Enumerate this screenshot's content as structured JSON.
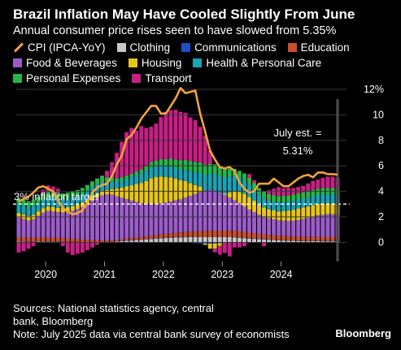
{
  "title": "Brazil Inflation May Have Cooled Slightly From June",
  "subtitle": "Annual consumer price rises seen to have slowed from 5.35%",
  "legend": [
    {
      "label": "CPI (IPCA-YoY)",
      "color": "#f2a33a",
      "kind": "line"
    },
    {
      "label": "Clothing",
      "color": "#c8c8c8",
      "kind": "box"
    },
    {
      "label": "Communications",
      "color": "#1f4fc4",
      "kind": "box"
    },
    {
      "label": "Education",
      "color": "#c8502b",
      "kind": "box"
    },
    {
      "label": "Food & Beverages",
      "color": "#9b5cc9",
      "kind": "box"
    },
    {
      "label": "Housing",
      "color": "#e6c619",
      "kind": "box"
    },
    {
      "label": "Health & Personal Care",
      "color": "#1aa2b5",
      "kind": "box"
    },
    {
      "label": "Personal Expenses",
      "color": "#27b54a",
      "kind": "box"
    },
    {
      "label": "Transport",
      "color": "#c81f86",
      "kind": "box"
    }
  ],
  "annotations": {
    "target_label": "3% inflation target",
    "july_line1": "July est. =",
    "july_line2": "5.31%"
  },
  "footer": {
    "sources_line1": "Sources: National statistics agency, central",
    "sources_line2": "bank, Bloomberg",
    "note": "Note: July 2025 data via central bank survey of economists"
  },
  "brand": "Bloomberg",
  "chart_data": {
    "type": "bar",
    "stacked": true,
    "x_axis": {
      "tick_labels": [
        "2020",
        "2021",
        "2022",
        "2023",
        "2024"
      ]
    },
    "y_axis": {
      "min": -1.5,
      "max": 12,
      "ticks": [
        0,
        2,
        4,
        6,
        8,
        10,
        12
      ],
      "tick_labels": [
        "0",
        "2",
        "4",
        "6",
        "8",
        "10",
        "12%"
      ],
      "position": "right"
    },
    "target_line": 3.0,
    "months": 66,
    "start_month": "2019-07",
    "series": [
      {
        "name": "Clothing",
        "color": "#c8c8c8",
        "values": [
          0.07,
          0.06,
          0.05,
          0.05,
          0.06,
          0.06,
          0.05,
          0.05,
          0.05,
          0.04,
          0.03,
          0.02,
          0.02,
          0.0,
          -0.01,
          -0.01,
          0.0,
          0.0,
          0.02,
          0.05,
          0.08,
          0.1,
          0.13,
          0.15,
          0.18,
          0.2,
          0.23,
          0.26,
          0.29,
          0.32,
          0.35,
          0.37,
          0.39,
          0.4,
          0.41,
          0.42,
          0.42,
          0.42,
          0.42,
          0.42,
          0.42,
          0.42,
          0.42,
          0.41,
          0.39,
          0.36,
          0.33,
          0.3,
          0.28,
          0.25,
          0.23,
          0.21,
          0.19,
          0.17,
          0.15,
          0.14,
          0.13,
          0.12,
          0.11,
          0.1,
          0.1,
          0.1,
          0.09,
          0.09,
          0.09,
          0.09
        ]
      },
      {
        "name": "Communications",
        "color": "#1f4fc4",
        "values": [
          0.02,
          0.02,
          0.02,
          0.02,
          0.02,
          0.02,
          0.02,
          0.02,
          0.02,
          0.02,
          0.02,
          0.02,
          0.02,
          0.02,
          0.02,
          0.02,
          0.02,
          0.02,
          0.02,
          0.02,
          0.02,
          0.02,
          0.02,
          0.02,
          0.02,
          0.02,
          0.02,
          0.02,
          0.02,
          0.02,
          0.02,
          0.02,
          0.02,
          0.02,
          0.02,
          0.02,
          -0.08,
          -0.1,
          -0.1,
          -0.1,
          -0.08,
          -0.06,
          -0.03,
          0.0,
          0.02,
          0.02,
          0.02,
          0.02,
          0.02,
          0.02,
          0.02,
          0.02,
          0.02,
          0.02,
          0.02,
          0.02,
          0.02,
          0.02,
          0.02,
          0.02,
          0.02,
          0.02,
          0.02,
          0.02,
          0.02,
          0.02
        ]
      },
      {
        "name": "Education",
        "color": "#c8502b",
        "values": [
          0.3,
          0.3,
          0.3,
          0.3,
          0.3,
          0.3,
          0.3,
          0.3,
          0.3,
          0.28,
          0.26,
          0.24,
          0.22,
          0.2,
          0.18,
          0.16,
          0.14,
          0.12,
          0.12,
          0.12,
          0.12,
          0.12,
          0.14,
          0.16,
          0.18,
          0.2,
          0.22,
          0.24,
          0.26,
          0.28,
          0.3,
          0.32,
          0.34,
          0.36,
          0.38,
          0.4,
          0.42,
          0.44,
          0.46,
          0.48,
          0.5,
          0.5,
          0.5,
          0.5,
          0.5,
          0.48,
          0.46,
          0.44,
          0.42,
          0.4,
          0.38,
          0.36,
          0.35,
          0.34,
          0.33,
          0.32,
          0.31,
          0.3,
          0.3,
          0.3,
          0.3,
          0.3,
          0.3,
          0.3,
          0.3,
          0.3
        ]
      },
      {
        "name": "Food & Beverages",
        "color": "#9b5cc9",
        "values": [
          1.55,
          1.45,
          1.35,
          1.45,
          1.7,
          1.95,
          2.1,
          2.05,
          2.0,
          2.0,
          2.1,
          2.2,
          2.35,
          2.55,
          2.8,
          3.1,
          3.35,
          3.55,
          3.6,
          3.55,
          3.4,
          3.25,
          3.1,
          2.95,
          2.8,
          2.65,
          2.55,
          2.5,
          2.45,
          2.45,
          2.45,
          2.5,
          2.55,
          2.6,
          2.7,
          2.8,
          2.95,
          3.1,
          3.2,
          3.25,
          3.15,
          3.0,
          2.8,
          2.6,
          2.4,
          2.2,
          2.0,
          1.8,
          1.65,
          1.5,
          1.4,
          1.3,
          1.25,
          1.2,
          1.2,
          1.2,
          1.25,
          1.3,
          1.4,
          1.5,
          1.6,
          1.7,
          1.75,
          1.8,
          1.8,
          1.75
        ]
      },
      {
        "name": "Housing",
        "color": "#e6c619",
        "values": [
          0.35,
          0.35,
          0.35,
          0.35,
          0.35,
          0.35,
          0.35,
          0.35,
          0.35,
          0.35,
          0.35,
          0.35,
          0.35,
          0.35,
          0.35,
          0.35,
          0.35,
          0.35,
          0.35,
          0.45,
          0.6,
          0.8,
          1.0,
          1.2,
          1.4,
          1.6,
          1.8,
          2.0,
          2.1,
          2.1,
          2.0,
          1.9,
          1.7,
          1.5,
          1.3,
          1.0,
          0.7,
          0.4,
          -0.1,
          -0.4,
          -0.4,
          -0.2,
          0.1,
          0.4,
          0.7,
          0.9,
          1.0,
          1.0,
          0.9,
          0.8,
          0.7,
          0.7,
          0.7,
          0.7,
          0.75,
          0.8,
          0.85,
          0.9,
          0.9,
          0.9,
          0.9,
          0.9,
          0.9,
          0.85,
          0.85,
          0.85
        ]
      },
      {
        "name": "Health & Personal Care",
        "color": "#1aa2b5",
        "values": [
          0.7,
          0.7,
          0.7,
          0.7,
          0.7,
          0.7,
          0.7,
          0.7,
          0.7,
          0.7,
          0.7,
          0.7,
          0.7,
          0.7,
          0.7,
          0.7,
          0.7,
          0.7,
          0.65,
          0.6,
          0.55,
          0.55,
          0.6,
          0.65,
          0.7,
          0.75,
          0.8,
          0.85,
          0.85,
          0.85,
          0.85,
          0.85,
          0.85,
          0.85,
          0.9,
          0.95,
          1.0,
          1.1,
          1.2,
          1.25,
          1.3,
          1.3,
          1.3,
          1.25,
          1.2,
          1.15,
          1.1,
          1.0,
          0.9,
          0.8,
          0.75,
          0.7,
          0.7,
          0.7,
          0.7,
          0.7,
          0.7,
          0.7,
          0.7,
          0.7,
          0.7,
          0.7,
          0.7,
          0.7,
          0.7,
          0.7
        ]
      },
      {
        "name": "Personal Expenses",
        "color": "#27b54a",
        "values": [
          0.45,
          0.45,
          0.45,
          0.45,
          0.45,
          0.45,
          0.45,
          0.45,
          0.45,
          0.45,
          0.45,
          0.45,
          0.45,
          0.45,
          0.45,
          0.45,
          0.45,
          0.45,
          0.35,
          0.3,
          0.25,
          0.25,
          0.25,
          0.25,
          0.28,
          0.3,
          0.35,
          0.4,
          0.45,
          0.5,
          0.55,
          0.6,
          0.65,
          0.7,
          0.75,
          0.8,
          0.8,
          0.8,
          0.8,
          0.78,
          0.75,
          0.7,
          0.65,
          0.6,
          0.55,
          0.5,
          0.5,
          0.5,
          0.5,
          0.5,
          0.5,
          0.5,
          0.5,
          0.5,
          0.5,
          0.5,
          0.5,
          0.5,
          0.5,
          0.5,
          0.5,
          0.5,
          0.5,
          0.5,
          0.5,
          0.5
        ]
      },
      {
        "name": "Transport",
        "color": "#c81f86",
        "values": [
          -0.8,
          -0.7,
          -0.5,
          -0.3,
          0.0,
          0.3,
          0.5,
          0.45,
          0.35,
          -0.3,
          -0.8,
          -1.0,
          -0.9,
          -0.8,
          -0.6,
          -0.4,
          -0.2,
          0.05,
          0.5,
          1.2,
          2.0,
          2.8,
          3.4,
          3.6,
          3.2,
          3.4,
          3.0,
          2.8,
          2.9,
          3.3,
          3.7,
          3.8,
          3.9,
          3.8,
          3.7,
          3.4,
          3.3,
          2.8,
          2.3,
          1.0,
          -0.3,
          -0.7,
          -0.8,
          -1.1,
          -0.4,
          -0.4,
          -0.3,
          0.3,
          0.2,
          0.0,
          -0.3,
          0.3,
          0.5,
          0.7,
          0.6,
          0.6,
          0.5,
          0.5,
          0.5,
          0.6,
          0.7,
          0.7,
          0.8,
          0.9,
          0.9,
          0.85
        ]
      }
    ],
    "cpi_line": {
      "name": "CPI (IPCA-YoY)",
      "color": "#f2a33a",
      "values": [
        3.2,
        3.4,
        3.6,
        3.9,
        4.3,
        4.4,
        4.2,
        4.0,
        3.3,
        2.7,
        2.4,
        2.2,
        2.3,
        2.5,
        3.1,
        3.9,
        4.3,
        4.5,
        4.6,
        5.2,
        6.1,
        6.8,
        8.1,
        8.4,
        9.0,
        9.7,
        10.2,
        10.7,
        10.7,
        10.1,
        10.1,
        10.7,
        11.3,
        12.1,
        11.7,
        11.8,
        11.9,
        10.1,
        8.7,
        7.2,
        6.5,
        5.9,
        5.8,
        5.9,
        5.6,
        4.7,
        4.2,
        3.9,
        4.0,
        4.6,
        4.6,
        4.6,
        5.0,
        4.7,
        4.4,
        4.4,
        4.7,
        5.0,
        5.2,
        5.3,
        5.1,
        5.48,
        5.48,
        5.35,
        5.35,
        5.31
      ]
    },
    "july_estimate": 5.31
  }
}
